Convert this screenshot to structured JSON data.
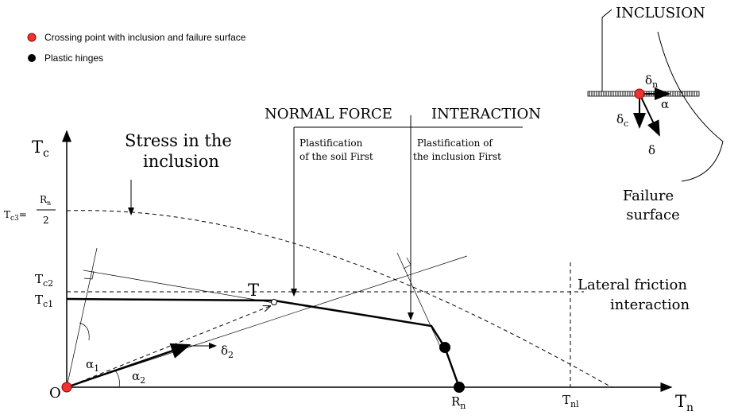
{
  "legend": [
    "Crossing point with inclusion and failure surface",
    "Plastic hinges"
  ],
  "inset": {
    "inclusion": "INCLUSION",
    "delta_n": {
      "base": "δ",
      "sub": "n"
    },
    "alpha": "α",
    "delta_c": {
      "base": "δ",
      "sub": "c"
    },
    "delta": "δ",
    "failure": [
      "Failure",
      "surface"
    ]
  },
  "header": {
    "normal": "NORMAL FORCE",
    "interaction": "INTERACTION",
    "soil": [
      "Plastification",
      "of  the soil First"
    ],
    "incl": [
      "Plastification of",
      "the inclusion First"
    ]
  },
  "stress": [
    "Stress in the",
    "inclusion"
  ],
  "axes": {
    "tc": {
      "base": "T",
      "sub": "c"
    },
    "tn": {
      "base": "T",
      "sub": "n"
    },
    "origin": "O",
    "tc3": {
      "base": "T",
      "sub": "c3",
      "eq": "=",
      "num": {
        "base": "R",
        "sub": "n"
      },
      "den": "2"
    },
    "tc2": {
      "base": "T",
      "sub": "c2"
    },
    "tc1": {
      "base": "T",
      "sub": "c1"
    },
    "rn": {
      "base": "R",
      "sub": "n"
    },
    "tn1": {
      "base": "T",
      "sub": "nl"
    }
  },
  "point": "T",
  "lateral": [
    "Lateral friction",
    "interaction"
  ],
  "angles": {
    "a1": {
      "base": "α",
      "sub": "1"
    },
    "a2": {
      "base": "α",
      "sub": "2"
    },
    "d2": {
      "base": "δ",
      "sub": "2"
    }
  }
}
